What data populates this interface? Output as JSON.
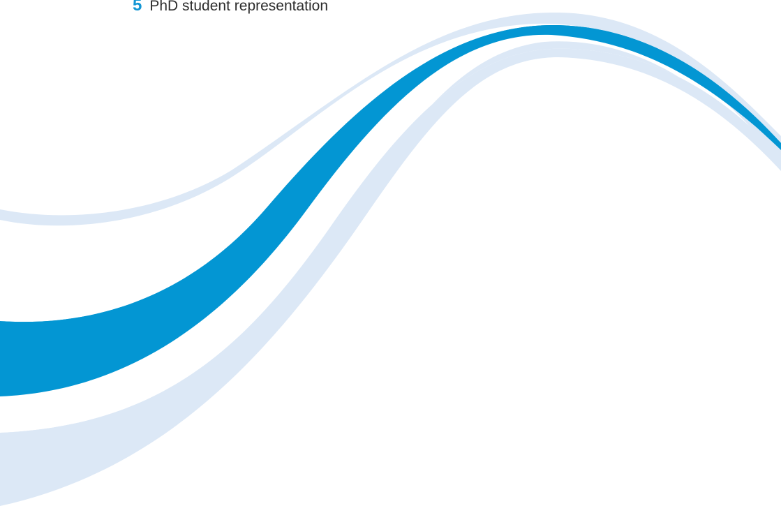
{
  "section": {
    "number": "5",
    "title": "PhD student representation"
  },
  "colors": {
    "number": "#1296d4",
    "title": "#2c2c2c",
    "swoosh_dark": "#0396d3",
    "swoosh_light": "#dce8f6"
  },
  "decor": {
    "shape": "wave-swoosh"
  }
}
